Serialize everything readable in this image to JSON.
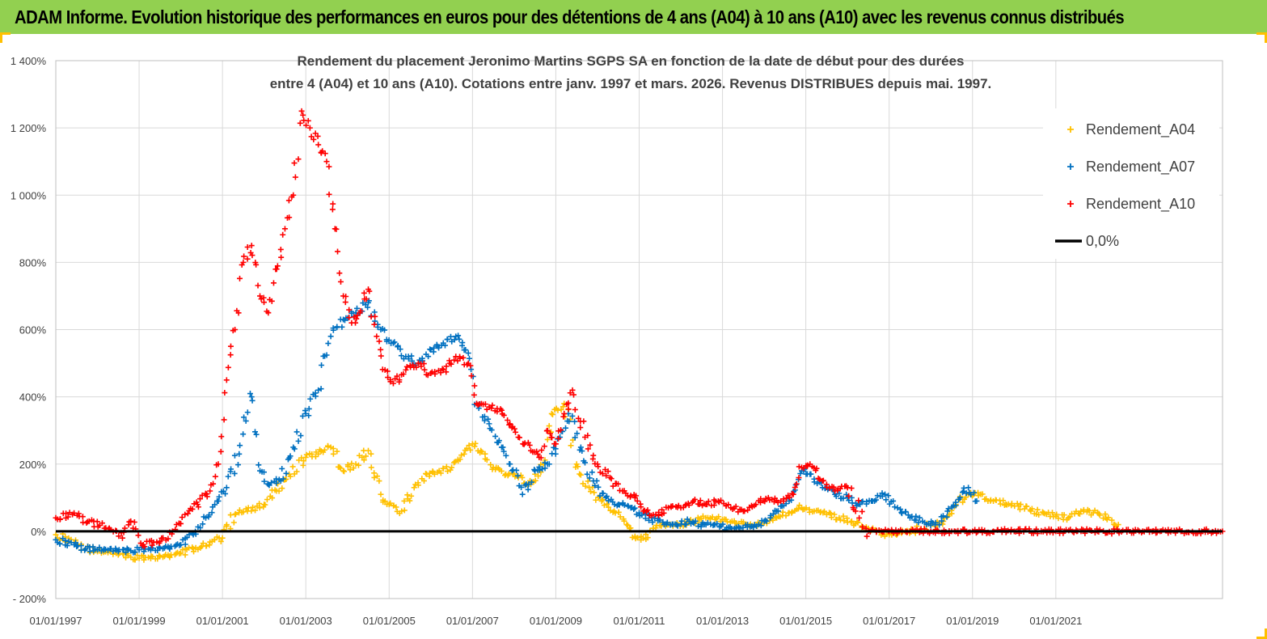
{
  "header": {
    "title": "ADAM Informe. Evolution historique des performances en euros pour des détentions de 4 ans (A04) à 10 ans (A10) avec les revenus connus distribués"
  },
  "chart_data": {
    "type": "scatter",
    "title_line1": "Rendement du placement Jeronimo Martins SGPS SA en fonction de la date de début pour des durées",
    "title_line2": "entre 4 (A04) et 10 ans (A10). Cotations entre janv. 1997 et mars. 2026. Revenus DISTRIBUES depuis mai. 1997.",
    "ylim": [
      -200,
      1400
    ],
    "yticks": [
      -200,
      0,
      200,
      400,
      600,
      800,
      1000,
      1200,
      1400
    ],
    "ytick_labels": [
      "- 200%",
      "0%",
      "200%",
      "400%",
      "600%",
      "800%",
      "1 000%",
      "1 200%",
      "1 400%"
    ],
    "xlim": [
      1997.0,
      2025.0
    ],
    "xticks": [
      1997,
      1999,
      2001,
      2003,
      2005,
      2007,
      2009,
      2011,
      2013,
      2015,
      2017,
      2019,
      2021
    ],
    "xtick_labels": [
      "01/01/1997",
      "01/01/1999",
      "01/01/2001",
      "01/01/2003",
      "01/01/2005",
      "01/01/2007",
      "01/01/2009",
      "01/01/2011",
      "01/01/2013",
      "01/01/2015",
      "01/01/2017",
      "01/01/2019",
      "01/01/2021"
    ],
    "grid": true,
    "legend_position": "top-right",
    "reference_line": {
      "name": "0,0%",
      "value": 0,
      "color": "#000000"
    },
    "series": [
      {
        "name": "Rendement_A04",
        "color": "#ffc000",
        "marker": "+",
        "x": [
          1997.0,
          1997.5,
          1998.0,
          1998.5,
          1999.0,
          1999.5,
          2000.0,
          2000.5,
          2001.0,
          2001.3,
          2001.6,
          2002.0,
          2002.3,
          2002.6,
          2003.0,
          2003.3,
          2003.6,
          2003.9,
          2004.2,
          2004.5,
          2004.8,
          2005.0,
          2005.3,
          2005.6,
          2005.9,
          2006.2,
          2006.5,
          2006.8,
          2007.0,
          2007.2,
          2007.5,
          2007.8,
          2008.1,
          2008.4,
          2008.7,
          2008.9,
          2009.2,
          2009.5,
          2009.8,
          2010.1,
          2010.4,
          2010.7,
          2010.9,
          2011.1,
          2011.4,
          2011.7,
          2012.0,
          2012.3,
          2012.6,
          2013.0,
          2013.3,
          2013.6,
          2014.0,
          2014.3,
          2014.6,
          2014.9,
          2015.2,
          2015.5,
          2015.8,
          2016.1,
          2016.4,
          2016.7,
          2017.0,
          2017.3,
          2017.6,
          2018.0,
          2018.3,
          2018.6,
          2018.9,
          2019.2,
          2019.5,
          2019.8,
          2020.1,
          2020.4,
          2020.7,
          2021.0,
          2021.3,
          2021.6,
          2021.9,
          2022.2,
          2022.5
        ],
        "y": [
          -10,
          -40,
          -60,
          -70,
          -80,
          -75,
          -65,
          -45,
          -20,
          50,
          60,
          80,
          120,
          170,
          220,
          230,
          250,
          180,
          200,
          240,
          110,
          80,
          60,
          130,
          170,
          180,
          190,
          230,
          260,
          240,
          190,
          170,
          160,
          140,
          200,
          350,
          380,
          200,
          130,
          90,
          60,
          20,
          -15,
          -20,
          10,
          20,
          20,
          30,
          40,
          35,
          25,
          20,
          25,
          40,
          55,
          70,
          60,
          50,
          40,
          30,
          10,
          0,
          -10,
          -5,
          0,
          20,
          30,
          80,
          110,
          110,
          90,
          80,
          75,
          60,
          55,
          45,
          40,
          60,
          55,
          40,
          20
        ]
      },
      {
        "name": "Rendement_A07",
        "color": "#0070c0",
        "marker": "+",
        "x": [
          1997.0,
          1997.5,
          1998.0,
          1998.5,
          1999.0,
          1999.5,
          2000.0,
          2000.3,
          2000.6,
          2000.9,
          2001.1,
          2001.4,
          2001.7,
          2001.9,
          2002.1,
          2002.4,
          2002.7,
          2003.0,
          2003.3,
          2003.6,
          2003.9,
          2004.2,
          2004.5,
          2004.8,
          2005.1,
          2005.4,
          2005.7,
          2006.0,
          2006.3,
          2006.6,
          2006.9,
          2007.1,
          2007.4,
          2007.7,
          2007.9,
          2008.2,
          2008.5,
          2008.8,
          2009.1,
          2009.3,
          2009.6,
          2009.9,
          2010.2,
          2010.5,
          2010.8,
          2011.0,
          2011.3,
          2011.6,
          2011.9,
          2012.2,
          2012.5,
          2012.8,
          2013.1,
          2013.4,
          2013.7,
          2014.0,
          2014.3,
          2014.6,
          2014.9,
          2015.1,
          2015.4,
          2015.7,
          2016.0,
          2016.3,
          2016.6,
          2016.9,
          2017.2,
          2017.5,
          2017.8,
          2018.1,
          2018.4,
          2018.7,
          2018.9,
          2019.1
        ],
        "y": [
          -25,
          -45,
          -55,
          -60,
          -55,
          -50,
          -40,
          -10,
          40,
          90,
          130,
          230,
          400,
          180,
          140,
          150,
          250,
          350,
          420,
          580,
          630,
          650,
          680,
          600,
          560,
          520,
          500,
          540,
          560,
          580,
          530,
          380,
          320,
          250,
          200,
          110,
          180,
          200,
          280,
          350,
          250,
          150,
          100,
          80,
          70,
          55,
          40,
          20,
          20,
          30,
          20,
          20,
          10,
          10,
          15,
          30,
          60,
          90,
          180,
          170,
          130,
          110,
          100,
          80,
          90,
          110,
          70,
          40,
          30,
          20,
          60,
          100,
          130,
          90
        ]
      },
      {
        "name": "Rendement_A10",
        "color": "#ff0000",
        "marker": "+",
        "x": [
          1997.0,
          1997.4,
          1997.8,
          1998.2,
          1998.6,
          1998.8,
          1999.1,
          1999.5,
          1999.8,
          2000.1,
          2000.4,
          2000.7,
          2000.9,
          2001.1,
          2001.3,
          2001.5,
          2001.7,
          2001.9,
          2002.1,
          2002.3,
          2002.5,
          2002.7,
          2002.9,
          2003.1,
          2003.3,
          2003.5,
          2003.7,
          2003.9,
          2004.1,
          2004.3,
          2004.5,
          2004.7,
          2004.9,
          2005.1,
          2005.4,
          2005.7,
          2006.0,
          2006.3,
          2006.6,
          2006.9,
          2007.1,
          2007.4,
          2007.7,
          2007.9,
          2008.1,
          2008.4,
          2008.6,
          2008.8,
          2009.0,
          2009.2,
          2009.4,
          2009.7,
          2010.0,
          2010.3,
          2010.6,
          2010.9,
          2011.1,
          2011.4,
          2011.7,
          2012.0,
          2012.3,
          2012.6,
          2012.9,
          2013.2,
          2013.5,
          2013.8,
          2014.1,
          2014.4,
          2014.7,
          2014.9,
          2015.1,
          2015.4,
          2015.7,
          2016.0,
          2016.5,
          2017.0,
          2017.5,
          2018.0,
          2018.5,
          2019.0,
          2019.5,
          2020.0,
          2020.5,
          2021.0,
          2021.5,
          2022.0,
          2022.5,
          2023.0,
          2023.5,
          2024.0,
          2024.5,
          2025.0
        ],
        "y": [
          40,
          50,
          30,
          10,
          -20,
          30,
          -40,
          -30,
          0,
          50,
          80,
          120,
          200,
          450,
          600,
          800,
          850,
          700,
          650,
          780,
          900,
          1000,
          1250,
          1200,
          1150,
          1100,
          900,
          700,
          620,
          650,
          720,
          580,
          480,
          440,
          480,
          500,
          470,
          480,
          520,
          500,
          380,
          370,
          360,
          320,
          280,
          240,
          220,
          300,
          260,
          350,
          420,
          280,
          200,
          160,
          120,
          100,
          60,
          50,
          70,
          70,
          90,
          80,
          90,
          70,
          60,
          80,
          100,
          90,
          110,
          190,
          200,
          150,
          120,
          130,
          0,
          0,
          0,
          0,
          0,
          0,
          0,
          0,
          0,
          0,
          0,
          0,
          0,
          0,
          0,
          0,
          0,
          0
        ]
      }
    ]
  }
}
